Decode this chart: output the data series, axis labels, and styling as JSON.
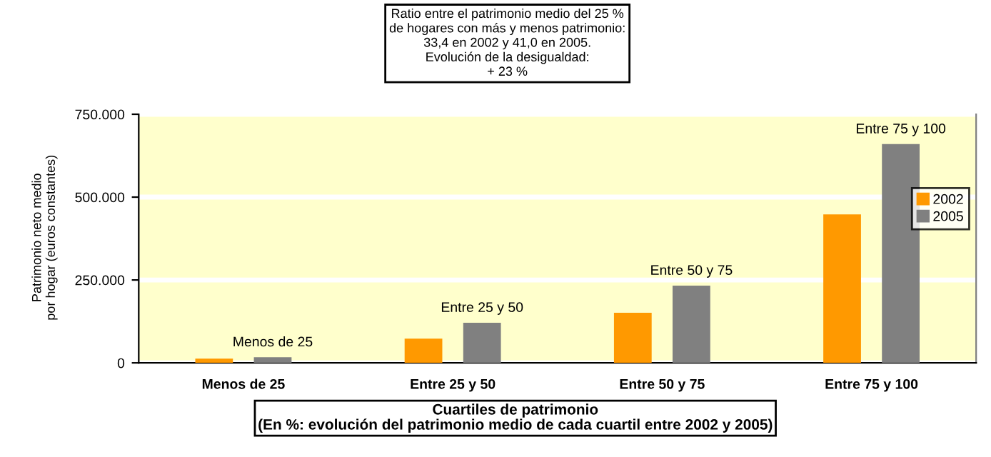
{
  "chart_data": {
    "type": "bar",
    "title": "Ratio entre el patrimonio medio del 25 %\nde hogares con más y menos patrimonio:\n33,4 en 2002 y 41,0 en 2005.\nEvolución de la desigualdad:\n+ 23 %",
    "xlabel": "Cuartiles de patrimonio\n(En %: evolución del patrimonio medio de cada cuartil entre 2002 y 2005)",
    "ylabel": "Patrimonio neto medio\npor hogar (euros constantes)",
    "categories": [
      "Menos de 25",
      "Entre 25 y 50",
      "Entre 50 y 75",
      "Entre 75 y 100"
    ],
    "series": [
      {
        "name": "2002",
        "color": "#ff9900",
        "values": [
          13000,
          73000,
          151000,
          448000
        ]
      },
      {
        "name": "2005",
        "color": "#808080",
        "values": [
          17000,
          121000,
          233000,
          660000
        ]
      }
    ],
    "annotations": [
      "Menos de 25",
      "Entre 25 y 50",
      "Entre 50 y 75",
      "Entre 75 y 100"
    ],
    "ylim": [
      0,
      750000
    ],
    "yticks": [
      {
        "value": 0,
        "label": "0"
      },
      {
        "value": 250000,
        "label": "250.000"
      },
      {
        "value": 500000,
        "label": "500.000"
      },
      {
        "value": 750000,
        "label": "750.000"
      }
    ],
    "grid": "y",
    "legend": "right"
  }
}
